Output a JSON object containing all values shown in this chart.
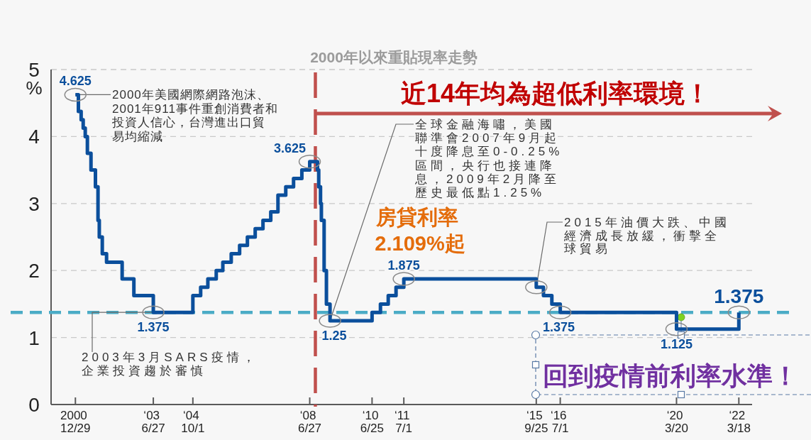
{
  "chart_data": {
    "type": "step",
    "title": "2000年以來重貼現率走勢",
    "ylabel": "%",
    "color": "#0b4f9c",
    "x": [
      "2000-12-29",
      "2001-02-02",
      "2001-03-06",
      "2001-03-30",
      "2001-04-23",
      "2001-05-18",
      "2001-06-29",
      "2001-08-20",
      "2001-09-19",
      "2001-10-04",
      "2001-11-08",
      "2001-12-28",
      "2002-06-28",
      "2002-11-12",
      "2003-06-27",
      "2004-10-01",
      "2004-12-31",
      "2005-03-25",
      "2005-07-01",
      "2005-09-16",
      "2005-12-23",
      "2006-03-31",
      "2006-06-30",
      "2006-09-29",
      "2006-12-29",
      "2007-03-30",
      "2007-06-22",
      "2007-09-21",
      "2007-12-21",
      "2008-03-27",
      "2008-06-27",
      "2008-09-26",
      "2008-10-10",
      "2008-10-31",
      "2008-11-10",
      "2008-12-12",
      "2009-01-08",
      "2009-02-19",
      "2010-06-25",
      "2010-10-01",
      "2010-12-31",
      "2011-04-01",
      "2011-07-01",
      "2015-09-25",
      "2015-12-18",
      "2016-03-25",
      "2016-07-01",
      "2020-03-20",
      "2022-03-18"
    ],
    "values": [
      4.625,
      4.375,
      4.25,
      4.125,
      4,
      3.75,
      3.5,
      3.25,
      2.75,
      2.5,
      2.25,
      2.125,
      1.875,
      1.625,
      1.375,
      1.625,
      1.75,
      1.875,
      2,
      2.125,
      2.25,
      2.375,
      2.5,
      2.625,
      2.75,
      2.875,
      3.125,
      3.25,
      3.375,
      3.5,
      3.625,
      3.5,
      3.25,
      3,
      2.75,
      2,
      1.5,
      1.25,
      1.375,
      1.5,
      1.625,
      1.75,
      1.875,
      1.75,
      1.625,
      1.5,
      1.375,
      1.125,
      1.375
    ],
    "value_labels": [
      "4.625",
      null,
      null,
      null,
      null,
      null,
      null,
      null,
      null,
      null,
      null,
      null,
      null,
      null,
      "1.375",
      null,
      null,
      null,
      null,
      null,
      null,
      null,
      null,
      null,
      null,
      null,
      null,
      null,
      null,
      null,
      "3.625",
      null,
      null,
      null,
      null,
      null,
      null,
      "1.25",
      null,
      null,
      null,
      null,
      "1.875",
      null,
      null,
      null,
      "1.375",
      "1.125",
      "1.375"
    ],
    "xlim": [
      "2000-03-20",
      "2022-08-20"
    ],
    "ylim": [
      0,
      5
    ],
    "yticks": [
      0,
      1,
      2,
      3,
      4,
      5
    ],
    "xticks": [
      {
        "value": "2000-12-29",
        "label": "2000\n12/29"
      },
      {
        "value": "2003-06-27",
        "label": "‘03\n6/27"
      },
      {
        "value": "2004-10-01",
        "label": "‘04\n10/1"
      },
      {
        "value": "2008-06-27",
        "label": "‘08\n6/27"
      },
      {
        "value": "2010-06-25",
        "label": "‘10\n6/25"
      },
      {
        "value": "2011-07-01",
        "label": "‘11\n7/1"
      },
      {
        "value": "2015-09-25",
        "label": "‘15\n9/25"
      },
      {
        "value": "2016-07-01",
        "label": "‘16\n7/1"
      },
      {
        "value": "2020-03-20",
        "label": "‘20\n3/20"
      },
      {
        "value": "2022-03-18",
        "label": "‘22\n3/18"
      }
    ],
    "grid": "y",
    "ref_lines": [
      {
        "axis": "y",
        "value": 1.375,
        "color": "#4bacc6",
        "line_style": "dashed"
      },
      {
        "axis": "x",
        "value": "2008-09",
        "color": "#c0504d",
        "line_style": "dashed"
      }
    ],
    "annotations": [
      {
        "text": "2000年美國網際網路泡沫、2001年911事件重創消費者和投資人信心，台灣進出口貿易均縮減",
        "x": "2000-12-29",
        "y": 4.625
      },
      {
        "text": "2003年3月SARS疫情，企業投資趨於審慎",
        "x": "2003-06-27",
        "y": 1.375
      },
      {
        "text": "全球金融海嘯，美國聯準會2007年9月起十度降息至0-0.25%區間，央行也接連降息，2009年2月降至歷史最低點1.25%",
        "x": "2009-02-19",
        "y": 1.25
      },
      {
        "text": "2015年油價大跌、中國經濟成長放緩，衝擊全球貿易",
        "x": "2015-09-25",
        "y": 1.75
      },
      "房貸利率\n2.109%起",
      "近14年均為超低利率環境！",
      "回到疫情前利率水準！"
    ]
  }
}
